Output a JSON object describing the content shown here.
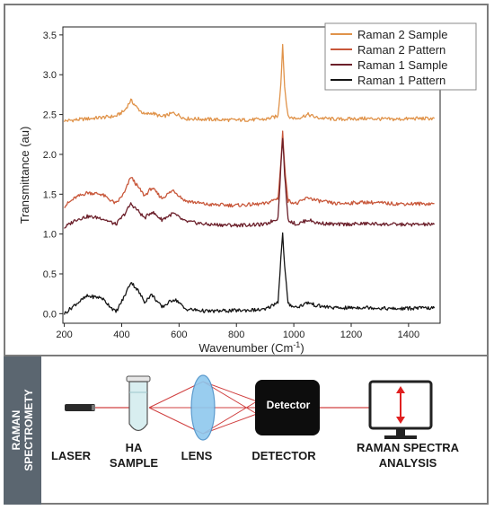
{
  "chart_data": {
    "type": "line",
    "xlabel": "Wavenumber (Cm",
    "xlabel_sup": "-1",
    "xlabel_end": ")",
    "ylabel": "Transmittance (au)",
    "xlim": [
      195,
      1510
    ],
    "ylim": [
      -0.12,
      3.6
    ],
    "xticks": [
      200,
      400,
      600,
      800,
      1000,
      1200,
      1400
    ],
    "yticks": [
      0.0,
      0.5,
      1.0,
      1.5,
      2.0,
      2.5,
      3.0,
      3.5
    ],
    "ytick_labels": [
      "0.0",
      "0.5",
      "1.0",
      "1.5",
      "2.0",
      "2.5",
      "3.0",
      "3.5"
    ],
    "legend_position": "top-right",
    "series": [
      {
        "name": "Raman 2 Sample",
        "color": "#e0934a",
        "baseline": 2.42,
        "points": [
          [
            200,
            2.42
          ],
          [
            260,
            2.44
          ],
          [
            320,
            2.46
          ],
          [
            380,
            2.48
          ],
          [
            410,
            2.55
          ],
          [
            432,
            2.68
          ],
          [
            455,
            2.58
          ],
          [
            480,
            2.5
          ],
          [
            505,
            2.52
          ],
          [
            540,
            2.47
          ],
          [
            580,
            2.52
          ],
          [
            595,
            2.5
          ],
          [
            620,
            2.45
          ],
          [
            700,
            2.44
          ],
          [
            800,
            2.43
          ],
          [
            900,
            2.44
          ],
          [
            945,
            2.48
          ],
          [
            955,
            2.9
          ],
          [
            961,
            3.38
          ],
          [
            968,
            2.85
          ],
          [
            980,
            2.47
          ],
          [
            1010,
            2.45
          ],
          [
            1050,
            2.5
          ],
          [
            1080,
            2.46
          ],
          [
            1150,
            2.44
          ],
          [
            1250,
            2.45
          ],
          [
            1350,
            2.44
          ],
          [
            1420,
            2.45
          ],
          [
            1490,
            2.45
          ]
        ]
      },
      {
        "name": "Raman 2 Pattern",
        "color": "#c8573a",
        "baseline": 1.35,
        "points": [
          [
            200,
            1.35
          ],
          [
            240,
            1.46
          ],
          [
            280,
            1.52
          ],
          [
            330,
            1.5
          ],
          [
            380,
            1.38
          ],
          [
            410,
            1.52
          ],
          [
            432,
            1.72
          ],
          [
            455,
            1.6
          ],
          [
            480,
            1.48
          ],
          [
            505,
            1.58
          ],
          [
            540,
            1.45
          ],
          [
            580,
            1.55
          ],
          [
            595,
            1.5
          ],
          [
            620,
            1.42
          ],
          [
            700,
            1.37
          ],
          [
            800,
            1.36
          ],
          [
            900,
            1.38
          ],
          [
            945,
            1.45
          ],
          [
            955,
            1.9
          ],
          [
            961,
            2.28
          ],
          [
            968,
            1.85
          ],
          [
            980,
            1.42
          ],
          [
            1010,
            1.38
          ],
          [
            1050,
            1.46
          ],
          [
            1080,
            1.42
          ],
          [
            1150,
            1.38
          ],
          [
            1250,
            1.4
          ],
          [
            1350,
            1.38
          ],
          [
            1420,
            1.38
          ],
          [
            1490,
            1.38
          ]
        ]
      },
      {
        "name": "Raman 1 Sample",
        "color": "#6b1f2a",
        "baseline": 1.12,
        "points": [
          [
            200,
            1.08
          ],
          [
            240,
            1.18
          ],
          [
            280,
            1.22
          ],
          [
            330,
            1.2
          ],
          [
            380,
            1.12
          ],
          [
            410,
            1.25
          ],
          [
            432,
            1.38
          ],
          [
            455,
            1.3
          ],
          [
            480,
            1.2
          ],
          [
            505,
            1.28
          ],
          [
            540,
            1.18
          ],
          [
            580,
            1.26
          ],
          [
            595,
            1.22
          ],
          [
            620,
            1.16
          ],
          [
            700,
            1.12
          ],
          [
            800,
            1.11
          ],
          [
            900,
            1.12
          ],
          [
            945,
            1.2
          ],
          [
            955,
            1.85
          ],
          [
            961,
            2.22
          ],
          [
            968,
            1.75
          ],
          [
            980,
            1.18
          ],
          [
            1010,
            1.12
          ],
          [
            1050,
            1.18
          ],
          [
            1080,
            1.14
          ],
          [
            1150,
            1.12
          ],
          [
            1250,
            1.13
          ],
          [
            1350,
            1.12
          ],
          [
            1420,
            1.12
          ],
          [
            1490,
            1.12
          ]
        ]
      },
      {
        "name": "Raman 1 Pattern",
        "color": "#151515",
        "baseline": 0.08,
        "points": [
          [
            200,
            0.0
          ],
          [
            240,
            0.12
          ],
          [
            280,
            0.22
          ],
          [
            330,
            0.2
          ],
          [
            380,
            0.02
          ],
          [
            410,
            0.22
          ],
          [
            432,
            0.4
          ],
          [
            455,
            0.3
          ],
          [
            480,
            0.15
          ],
          [
            505,
            0.24
          ],
          [
            540,
            0.08
          ],
          [
            580,
            0.18
          ],
          [
            595,
            0.16
          ],
          [
            620,
            0.06
          ],
          [
            700,
            0.03
          ],
          [
            800,
            0.04
          ],
          [
            900,
            0.05
          ],
          [
            945,
            0.15
          ],
          [
            955,
            0.7
          ],
          [
            961,
            1.0
          ],
          [
            968,
            0.6
          ],
          [
            980,
            0.12
          ],
          [
            1010,
            0.08
          ],
          [
            1050,
            0.14
          ],
          [
            1080,
            0.1
          ],
          [
            1150,
            0.07
          ],
          [
            1250,
            0.08
          ],
          [
            1350,
            0.06
          ],
          [
            1420,
            0.07
          ],
          [
            1490,
            0.07
          ]
        ]
      }
    ]
  },
  "diagram": {
    "side_label_line1": "RAMAN",
    "side_label_line2": "SPECTROMETY",
    "laser": "LASER",
    "sample_line1": "HA",
    "sample_line2": "SAMPLE",
    "lens": "LENS",
    "detector": "DETECTOR",
    "detector_box": "Detector",
    "analysis_line1": "RAMAN SPECTRA",
    "analysis_line2": "ANALYSIS",
    "beam_color": "#d04040",
    "arrow_color": "#e02020",
    "lens_color": "#8ec8ee",
    "sample_color": "#d8eef0"
  }
}
